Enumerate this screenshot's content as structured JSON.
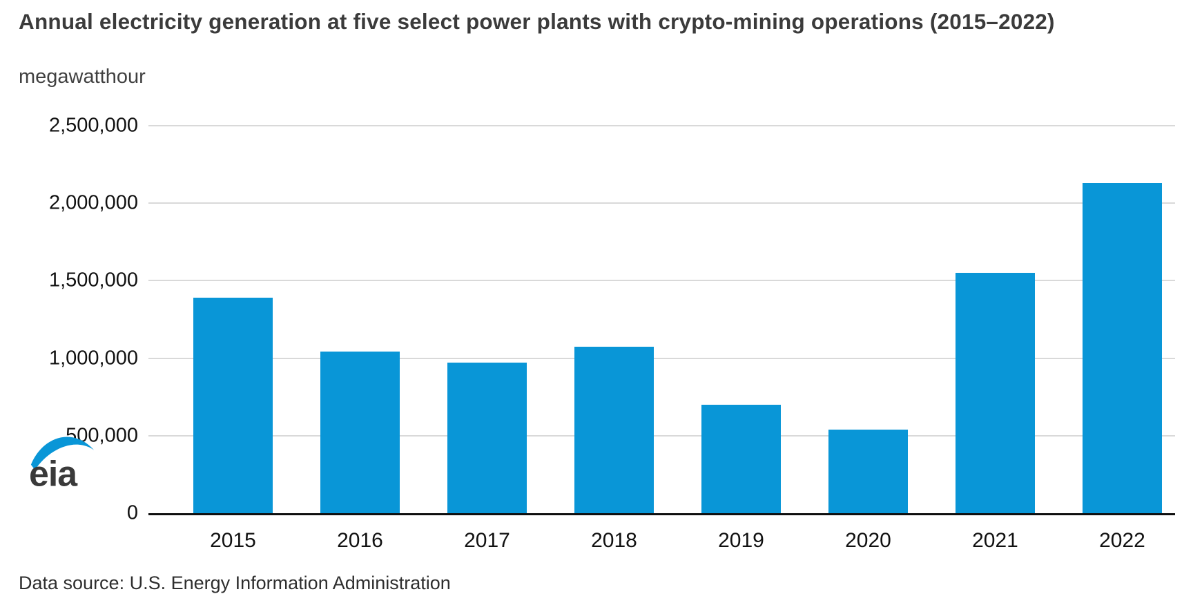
{
  "header": {
    "title": "Annual electricity generation at five select power plants with crypto-mining operations (2015–2022)",
    "subtitle": "megawatthour"
  },
  "logo": {
    "text": "eia",
    "swoosh_color": "#0996d7",
    "text_color": "#3a3a3a"
  },
  "footer": {
    "source_text": "Data source: U.S. Energy Information Administration"
  },
  "chart_data": {
    "type": "bar",
    "title": "Annual electricity generation at five select power plants with crypto-mining operations (2015–2022)",
    "ylabel": "megawatthour",
    "xlabel": "",
    "categories": [
      "2015",
      "2016",
      "2017",
      "2018",
      "2019",
      "2020",
      "2021",
      "2022"
    ],
    "values": [
      1390000,
      1045000,
      970000,
      1075000,
      700000,
      540000,
      1550000,
      2130000
    ],
    "ylim": [
      0,
      2500000
    ],
    "ytick_interval": 500000,
    "ytick_labels": [
      "0",
      "500,000",
      "1,000,000",
      "1,500,000",
      "2,000,000",
      "2,500,000"
    ],
    "grid": "horizontal",
    "gridline_color": "#d9d9d9",
    "axis_color": "#0f0f0f",
    "bar_color": "#0996d7",
    "legend_position": "none"
  }
}
